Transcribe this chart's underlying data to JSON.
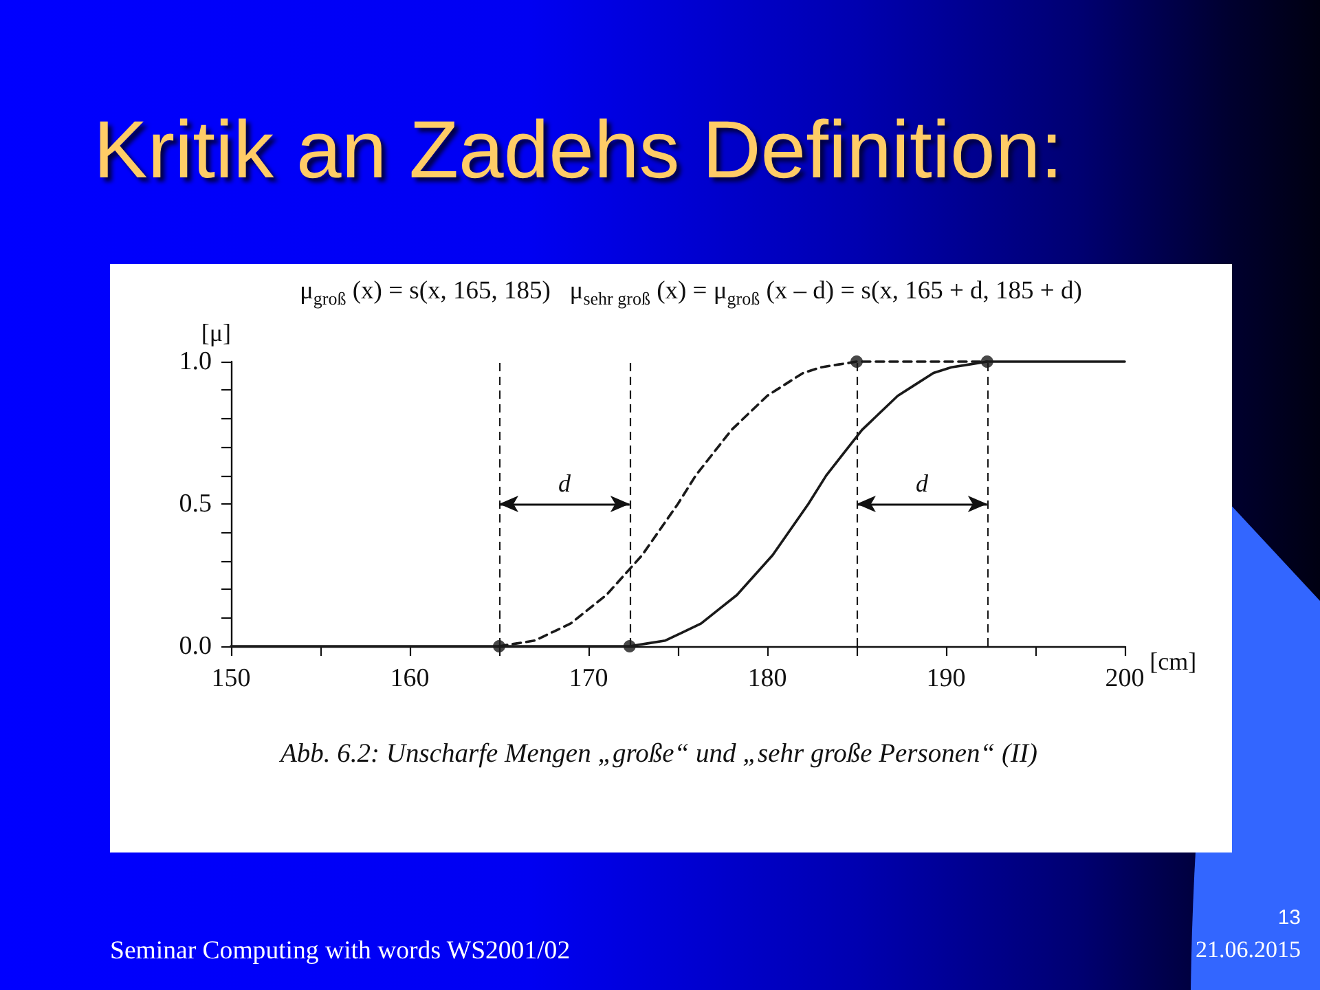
{
  "chart_data": {
    "type": "line",
    "title": "Kritik an Zadehs Definition:",
    "subtitle": "μ$_{groß}$ (x) = s(x, 165, 185)   μ$_{sehr groß}$ (x) = μ$_{groß}$ (x – d) = s(x, 165 + d, 185 + d)",
    "xlabel": "[cm]",
    "ylabel": "[μ]",
    "series": [
      {
        "color": "#1a1a1a",
        "line_style": "dashed",
        "marker": "none",
        "x": [
          165,
          166,
          167,
          168,
          169,
          170,
          171,
          172,
          173,
          174,
          175,
          176,
          177,
          178,
          179,
          180,
          181,
          182,
          183,
          184,
          185,
          192.3
        ],
        "values": [
          0,
          0.01,
          0.02,
          0.05,
          0.08,
          0.13,
          0.18,
          0.25,
          0.32,
          0.41,
          0.5,
          0.6,
          0.68,
          0.76,
          0.82,
          0.88,
          0.92,
          0.96,
          0.98,
          0.99,
          1,
          1
        ]
      },
      {
        "color": "#1a1a1a",
        "line_style": "solid",
        "marker": "none",
        "x": [
          150,
          172.3,
          173.3,
          174.3,
          175.3,
          176.3,
          177.3,
          178.3,
          179.3,
          180.3,
          181.3,
          182.3,
          183.3,
          184.3,
          185.3,
          186.3,
          187.3,
          188.3,
          189.3,
          190.3,
          191.3,
          192.3,
          200
        ],
        "values": [
          0,
          0,
          0.01,
          0.02,
          0.05,
          0.08,
          0.13,
          0.18,
          0.25,
          0.32,
          0.41,
          0.5,
          0.6,
          0.68,
          0.76,
          0.82,
          0.88,
          0.92,
          0.96,
          0.98,
          0.99,
          1,
          1
        ]
      },
      {
        "type": "scatter",
        "color": "#1a1a1a",
        "marker": "circle",
        "x": [
          165,
          172.3,
          185,
          192.3
        ],
        "values": [
          0,
          0,
          1,
          1
        ]
      }
    ],
    "xlim": [
      150,
      200
    ],
    "xticks": [
      150,
      {
        "value": 155,
        "label": null
      },
      160,
      {
        "value": 165,
        "label": null
      },
      170,
      {
        "value": 175,
        "label": null
      },
      180,
      {
        "value": 185,
        "label": null
      },
      190,
      {
        "value": 195,
        "label": null
      },
      200
    ],
    "ylim": [
      0,
      1
    ],
    "yticks": [
      {
        "value": 0,
        "label": "0.0"
      },
      {
        "value": 0.1,
        "label": null
      },
      {
        "value": 0.2,
        "label": null
      },
      {
        "value": 0.3,
        "label": null
      },
      {
        "value": 0.4,
        "label": null
      },
      0.5,
      {
        "value": 0.6,
        "label": null
      },
      {
        "value": 0.7,
        "label": null
      },
      {
        "value": 0.8,
        "label": null
      },
      {
        "value": 0.9,
        "label": null
      },
      {
        "value": 1,
        "label": "1.0"
      }
    ],
    "ref_lines": [
      {
        "axis": "x",
        "value": 165,
        "color": "#1a1a1a",
        "line_style": "dashed"
      },
      {
        "axis": "x",
        "value": 172.3,
        "color": "#1a1a1a",
        "line_style": "dashed"
      },
      {
        "axis": "x",
        "value": 185,
        "color": "#1a1a1a",
        "line_style": "dashed"
      },
      {
        "axis": "x",
        "value": 192.3,
        "color": "#1a1a1a",
        "line_style": "dashed"
      }
    ],
    "annotations": [
      "d",
      "d",
      "Abb. 6.2: Unscharfe Mengen „große“ und „sehr große Personen“ (II)",
      "Seminar Computing with words WS2001/02",
      "13",
      "21.06.2015"
    ]
  }
}
